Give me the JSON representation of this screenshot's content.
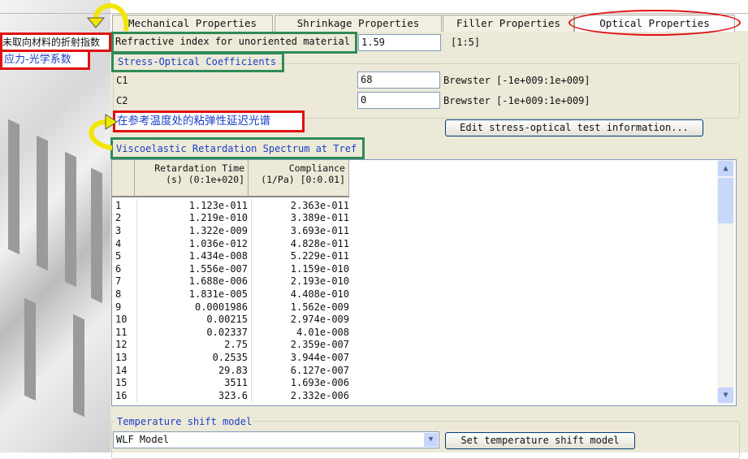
{
  "annotations": {
    "refractive_cn": "未取向材料的折射指数",
    "stress_optical_cn": "应力-光学系数",
    "spectrum_cn": "在参考温度处的粘弹性延迟光谱"
  },
  "tabs": [
    {
      "label": "Mechanical Properties"
    },
    {
      "label": "Shrinkage Properties"
    },
    {
      "label": "Filler Properties"
    },
    {
      "label": "Optical Properties",
      "active": true
    }
  ],
  "refractive": {
    "label": "Refractive index for unoriented material",
    "value": "1.59",
    "range": "[1:5]"
  },
  "stress_optical": {
    "title": "Stress-Optical Coefficients",
    "c1": {
      "label": "C1",
      "value": "68",
      "unit": "Brewster [-1e+009:1e+009]"
    },
    "c2": {
      "label": "C2",
      "value": "0",
      "unit": "Brewster [-1e+009:1e+009]"
    },
    "edit_button": "Edit stress-optical test information..."
  },
  "spectrum": {
    "title": "Viscoelastic Retardation Spectrum at Tref",
    "headers": [
      [
        "Retardation Time",
        "(s) (0:1e+020]"
      ],
      [
        "Compliance",
        "(1/Pa) [0:0.01]"
      ]
    ],
    "rows": [
      [
        "1",
        "1.123e-011",
        "2.363e-011"
      ],
      [
        "2",
        "1.219e-010",
        "3.389e-011"
      ],
      [
        "3",
        "1.322e-009",
        "3.693e-011"
      ],
      [
        "4",
        "1.036e-012",
        "4.828e-011"
      ],
      [
        "5",
        "1.434e-008",
        "5.229e-011"
      ],
      [
        "6",
        "1.556e-007",
        "1.159e-010"
      ],
      [
        "7",
        "1.688e-006",
        "2.193e-010"
      ],
      [
        "8",
        "1.831e-005",
        "4.408e-010"
      ],
      [
        "9",
        "0.0001986",
        "1.562e-009"
      ],
      [
        "10",
        "0.00215",
        "2.974e-009"
      ],
      [
        "11",
        "0.02337",
        "4.01e-008"
      ],
      [
        "12",
        "2.75",
        "2.359e-007"
      ],
      [
        "13",
        "0.2535",
        "3.944e-007"
      ],
      [
        "14",
        "29.83",
        "6.127e-007"
      ],
      [
        "15",
        "3511",
        "1.693e-006"
      ],
      [
        "16",
        "323.6",
        "2.332e-006"
      ]
    ]
  },
  "temperature": {
    "title": "Temperature shift model",
    "selected": "WLF Model",
    "button": "Set temperature shift model"
  },
  "colors": {
    "annotation_red": "#e01010",
    "annotation_green": "#2e8b57",
    "arrow_yellow": "#f2e600",
    "label_blue": "#1a3fc8"
  }
}
